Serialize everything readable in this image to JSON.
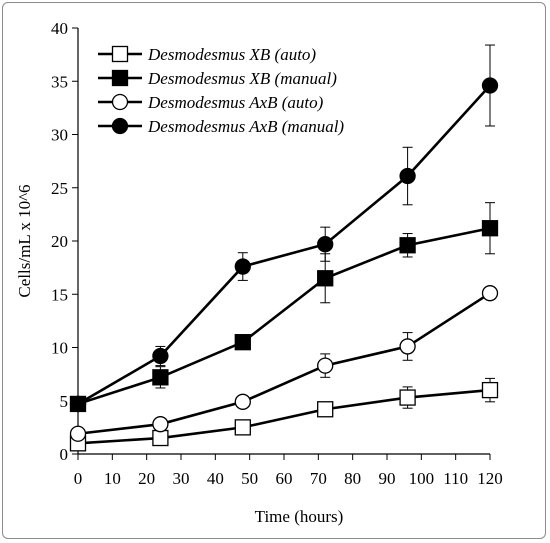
{
  "chart_data": {
    "type": "line",
    "title": "",
    "xlabel": "Time (hours)",
    "ylabel": "Cells/mL x 10^6",
    "xlim": [
      0,
      120
    ],
    "ylim": [
      0,
      40
    ],
    "x_ticks": [
      0,
      10,
      20,
      30,
      40,
      50,
      60,
      70,
      80,
      90,
      100,
      110,
      120
    ],
    "y_ticks": [
      0,
      5,
      10,
      15,
      20,
      25,
      30,
      35,
      40
    ],
    "legend_position": "top-left",
    "grid": false,
    "x": [
      0,
      24,
      48,
      72,
      96,
      120
    ],
    "series": [
      {
        "name": "Desmodesmus XB (auto)",
        "marker": "square-open",
        "values": [
          1.0,
          1.5,
          2.5,
          4.2,
          5.3,
          6.0
        ],
        "errors": [
          0.3,
          0.4,
          0.5,
          0.6,
          1.0,
          1.1
        ]
      },
      {
        "name": "Desmodesmus XB (manual)",
        "marker": "square-filled",
        "values": [
          4.7,
          7.2,
          10.5,
          16.5,
          19.6,
          21.2
        ],
        "errors": [
          0.4,
          1.0,
          0.4,
          2.3,
          1.1,
          2.4
        ]
      },
      {
        "name": "Desmodesmus AxB (auto)",
        "marker": "circle-open",
        "values": [
          1.9,
          2.8,
          4.9,
          8.3,
          10.1,
          15.1
        ],
        "errors": [
          0.3,
          0.4,
          0.4,
          1.1,
          1.3,
          0.5
        ]
      },
      {
        "name": "Desmodesmus AxB (manual)",
        "marker": "circle-filled",
        "values": [
          4.7,
          9.2,
          17.6,
          19.7,
          26.1,
          34.6
        ],
        "errors": [
          0.4,
          0.9,
          1.3,
          1.6,
          2.7,
          3.8
        ]
      }
    ]
  }
}
